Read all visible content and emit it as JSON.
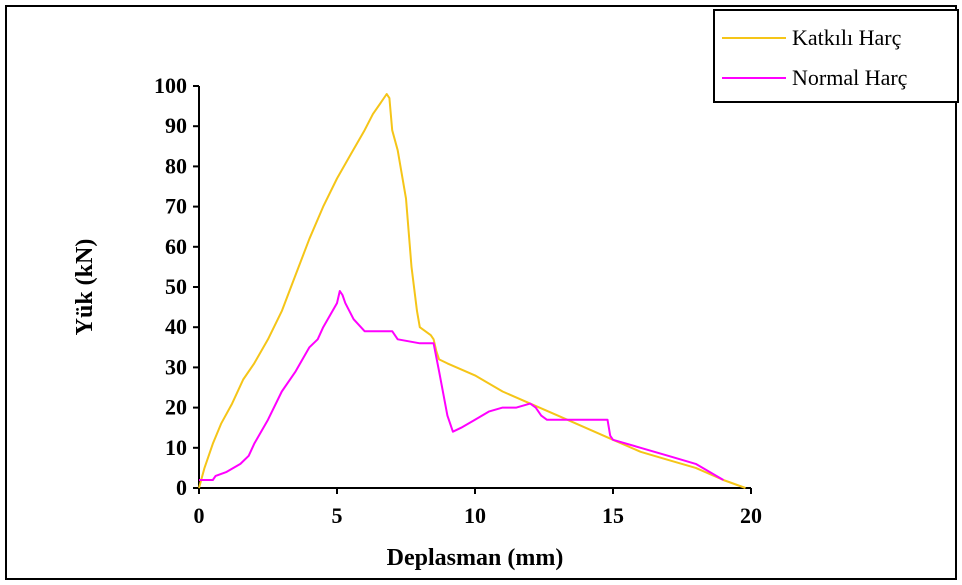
{
  "chart_data": {
    "type": "line",
    "title": "",
    "xlabel": "Deplasman (mm)",
    "ylabel": "Yük (kN)",
    "xlim": [
      0,
      20
    ],
    "ylim": [
      0,
      100
    ],
    "x_ticks": [
      "0",
      "5",
      "10",
      "15",
      "20"
    ],
    "y_ticks": [
      "0",
      "10",
      "20",
      "30",
      "40",
      "50",
      "60",
      "70",
      "80",
      "90",
      "100"
    ],
    "grid": false,
    "legend_position": "top-right",
    "series": [
      {
        "name": "Katkılı Harç",
        "color": "#f5c518",
        "x": [
          0.0,
          0.2,
          0.5,
          0.8,
          1.2,
          1.6,
          2.0,
          2.5,
          3.0,
          3.5,
          4.0,
          4.5,
          5.0,
          5.5,
          6.0,
          6.3,
          6.6,
          6.8,
          6.9,
          7.0,
          7.2,
          7.5,
          7.7,
          7.9,
          8.0,
          8.2,
          8.4,
          8.5,
          8.6,
          8.7,
          9.0,
          10.0,
          11.0,
          12.0,
          13.0,
          14.0,
          15.0,
          16.0,
          17.0,
          18.0,
          19.0,
          19.8
        ],
        "y": [
          0,
          5,
          11,
          16,
          21,
          27,
          31,
          37,
          44,
          53,
          62,
          70,
          77,
          83,
          89,
          93,
          96,
          98,
          97,
          89,
          84,
          72,
          55,
          44,
          40,
          39,
          38,
          37,
          34,
          32,
          31,
          28,
          24,
          21,
          18,
          15,
          12,
          9,
          7,
          5,
          2,
          0
        ]
      },
      {
        "name": "Normal Harç",
        "color": "#ff00ff",
        "x": [
          0.0,
          0.1,
          0.5,
          0.6,
          1.0,
          1.5,
          1.8,
          2.0,
          2.5,
          3.0,
          3.5,
          4.0,
          4.3,
          4.5,
          5.0,
          5.1,
          5.2,
          5.3,
          5.6,
          6.0,
          7.0,
          7.2,
          8.0,
          8.5,
          8.7,
          9.0,
          9.2,
          9.5,
          10.0,
          10.5,
          11.0,
          11.5,
          12.0,
          12.2,
          12.4,
          12.6,
          13.0,
          13.5,
          14.0,
          14.5,
          14.8,
          14.9,
          15.0,
          16.0,
          17.0,
          18.0,
          19.0
        ],
        "y": [
          2,
          2,
          2,
          3,
          4,
          6,
          8,
          11,
          17,
          24,
          29,
          35,
          37,
          40,
          46,
          49,
          48,
          46,
          42,
          39,
          39,
          37,
          36,
          36,
          29,
          18,
          14,
          15,
          17,
          19,
          20,
          20,
          21,
          20,
          18,
          17,
          17,
          17,
          17,
          17,
          17,
          13,
          12,
          10,
          8,
          6,
          2
        ]
      }
    ]
  }
}
